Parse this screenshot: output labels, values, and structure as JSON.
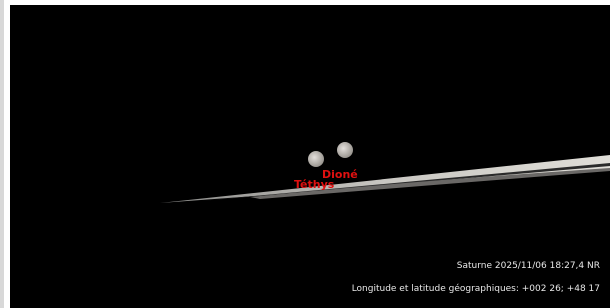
{
  "view": {
    "moons": [
      {
        "label": "Dioné"
      },
      {
        "label": "Téthys"
      }
    ],
    "status": {
      "object": "Saturne 2025/11/06 18:27,4 NR",
      "coords": "Longitude et latitude géographiques: +002 26; +48 17"
    }
  }
}
